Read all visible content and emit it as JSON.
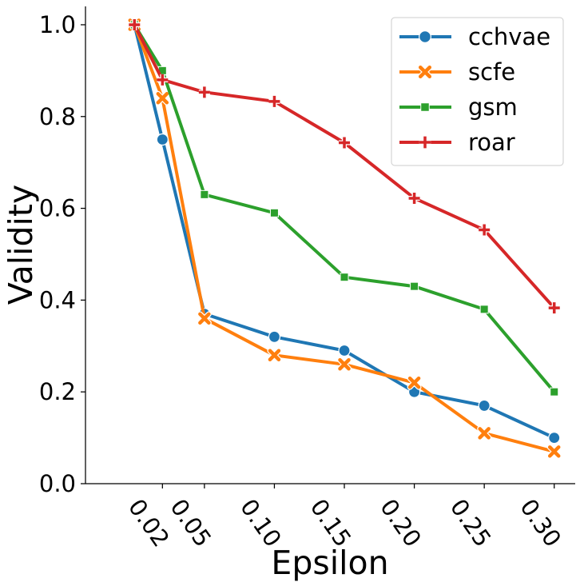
{
  "chart_data": {
    "type": "line",
    "xlabel": "Epsilon",
    "ylabel": "Validity",
    "x": [
      0,
      0.02,
      0.05,
      0.1,
      0.15,
      0.2,
      0.25,
      0.3
    ],
    "x_ticks": [
      0.02,
      0.05,
      0.1,
      0.15,
      0.2,
      0.25,
      0.3
    ],
    "x_tick_labels": [
      "0.02",
      "0.05",
      "0.10",
      "0.15",
      "0.20",
      "0.25",
      "0.30"
    ],
    "y_ticks": [
      0.0,
      0.2,
      0.4,
      0.6,
      0.8,
      1.0
    ],
    "y_tick_labels": [
      "0.0",
      "0.2",
      "0.4",
      "0.6",
      "0.8",
      "1.0"
    ],
    "ylim": [
      0.0,
      1.04
    ],
    "xlim": [
      -0.035,
      0.315
    ],
    "grid": false,
    "legend_position": "top-right",
    "series": [
      {
        "name": "cchvae",
        "color": "#1f77b4",
        "marker": "circle",
        "values": [
          1.0,
          0.75,
          0.37,
          0.32,
          0.29,
          0.2,
          0.17,
          0.1
        ]
      },
      {
        "name": "scfe",
        "color": "#ff7f0e",
        "marker": "x",
        "values": [
          1.0,
          0.84,
          0.36,
          0.28,
          0.26,
          0.22,
          0.11,
          0.07
        ]
      },
      {
        "name": "gsm",
        "color": "#2ca02c",
        "marker": "square",
        "values": [
          1.0,
          0.9,
          0.63,
          0.59,
          0.45,
          0.43,
          0.38,
          0.2
        ]
      },
      {
        "name": "roar",
        "color": "#d62728",
        "marker": "plus",
        "values": [
          1.0,
          0.88,
          0.853,
          0.833,
          0.743,
          0.622,
          0.553,
          0.383
        ]
      }
    ]
  }
}
